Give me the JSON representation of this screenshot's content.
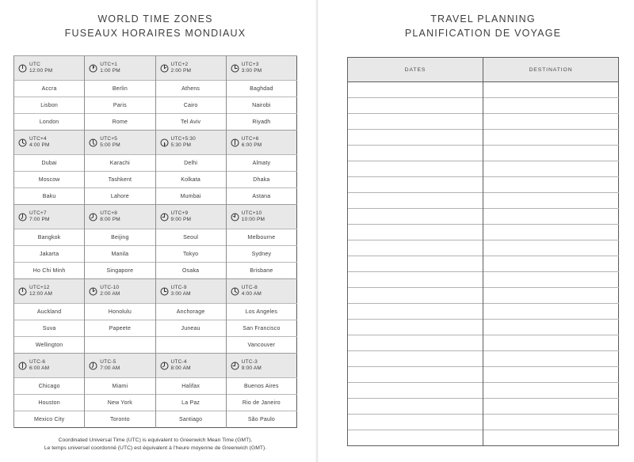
{
  "left_page": {
    "title_line1": "WORLD TIME ZONES",
    "title_line2": "FUSEAUX HORAIRES MONDIAUX",
    "footnote_line1": "Coordinated Universal Time (UTC) is equivalent to Greenwich Mean Time (GMT).",
    "footnote_line2": "Le temps universel coordonné (UTC) est équivalent à l’heure moyenne de Greenwich (GMT).",
    "clock_icon": "clock-icon",
    "zone_blocks": [
      {
        "zones": [
          {
            "utc": "UTC",
            "time": "12:00 PM",
            "cities": [
              "Accra",
              "Lisbon",
              "London"
            ]
          },
          {
            "utc": "UTC+1",
            "time": "1:00 PM",
            "cities": [
              "Berlin",
              "Paris",
              "Rome"
            ]
          },
          {
            "utc": "UTC+2",
            "time": "2:00 PM",
            "cities": [
              "Athens",
              "Cairo",
              "Tel Aviv"
            ]
          },
          {
            "utc": "UTC+3",
            "time": "3:00 PM",
            "cities": [
              "Baghdad",
              "Nairobi",
              "Riyadh"
            ]
          }
        ]
      },
      {
        "zones": [
          {
            "utc": "UTC+4",
            "time": "4:00 PM",
            "cities": [
              "Dubai",
              "Moscow",
              "Baku"
            ]
          },
          {
            "utc": "UTC+5",
            "time": "5:00 PM",
            "cities": [
              "Karachi",
              "Tashkent",
              "Lahore"
            ]
          },
          {
            "utc": "UTC+5:30",
            "time": "5:30 PM",
            "cities": [
              "Delhi",
              "Kolkata",
              "Mumbai"
            ]
          },
          {
            "utc": "UTC+6",
            "time": "6:00 PM",
            "cities": [
              "Almaty",
              "Dhaka",
              "Astana"
            ]
          }
        ]
      },
      {
        "zones": [
          {
            "utc": "UTC+7",
            "time": "7:00 PM",
            "cities": [
              "Bangkok",
              "Jakarta",
              "Ho Chi Minh"
            ]
          },
          {
            "utc": "UTC+8",
            "time": "8:00 PM",
            "cities": [
              "Beijing",
              "Manila",
              "Singapore"
            ]
          },
          {
            "utc": "UTC+9",
            "time": "9:00 PM",
            "cities": [
              "Seoul",
              "Tokyo",
              "Osaka"
            ]
          },
          {
            "utc": "UTC+10",
            "time": "10:00 PM",
            "cities": [
              "Melbourne",
              "Sydney",
              "Brisbane"
            ]
          }
        ]
      },
      {
        "zones": [
          {
            "utc": "UTC+12",
            "time": "12:00 AM",
            "cities": [
              "Auckland",
              "Suva",
              "Wellington"
            ]
          },
          {
            "utc": "UTC-10",
            "time": "2:00 AM",
            "cities": [
              "Honolulu",
              "Papeete",
              ""
            ]
          },
          {
            "utc": "UTC-9",
            "time": "3:00 AM",
            "cities": [
              "Anchorage",
              "Juneau",
              ""
            ]
          },
          {
            "utc": "UTC-8",
            "time": "4:00 AM",
            "cities": [
              "Los Angeles",
              "San Francisco",
              "Vancouver"
            ]
          }
        ]
      },
      {
        "zones": [
          {
            "utc": "UTC-6",
            "time": "6:00 AM",
            "cities": [
              "Chicago",
              "Houston",
              "Mexico City"
            ]
          },
          {
            "utc": "UTC-5",
            "time": "7:00 AM",
            "cities": [
              "Miami",
              "New York",
              "Toronto"
            ]
          },
          {
            "utc": "UTC-4",
            "time": "8:00 AM",
            "cities": [
              "Halifax",
              "La Paz",
              "Santiago"
            ]
          },
          {
            "utc": "UTC-3",
            "time": "9:00 AM",
            "cities": [
              "Buenos Aires",
              "Rio de Janeiro",
              "São Paulo"
            ]
          }
        ]
      }
    ]
  },
  "right_page": {
    "title_line1": "TRAVEL PLANNING",
    "title_line2": "PLANIFICATION DE VOYAGE",
    "column_headers": [
      "DATES",
      "DESTINATION"
    ],
    "empty_row_count": 23
  },
  "colors": {
    "header_bg": "#e8e8e8",
    "outer_border": "#5a5a5a",
    "inner_vertical_border": "#8d8d8d",
    "inner_horizontal_border": "#b3b3b3",
    "text": "#3a3a3a"
  }
}
